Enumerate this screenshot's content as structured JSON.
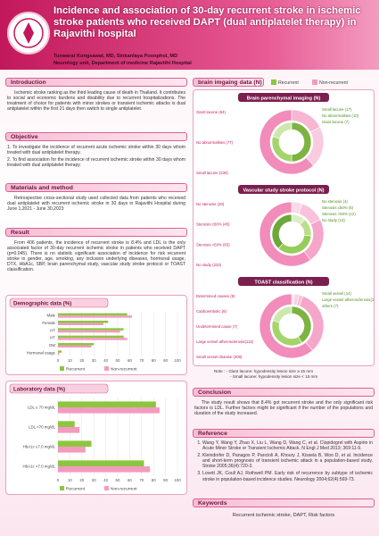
{
  "header": {
    "title": "Incidence and association of 30-day recurrent stroke in ischemic stroke patients who received DAPT (dual antiplatelet therapy) in Rajavithi hospital",
    "authors": "Tunwarat Kongsawat, MD, Sinkanlaya Poonphol, MD",
    "affiliation": "Neurology unit, Department of medicine Rajavithi Hospital"
  },
  "introduction": {
    "heading": "Introduction",
    "text": "Ischemic stroke ranking as the third leading cause of death in Thailand. It contributes to social and economic burdens and disability due to recurrent hospitalizations. The treatment of choice for patients with minor strokes or transient ischemic attacks is dual antiplatelet within the first 21 days then switch to single antiplatelet."
  },
  "objective": {
    "heading": "Objective",
    "items": [
      "1. To investigate the incidence of recurrent acute ischemic stroke within 30 days whom treated with dual antiplatelet therapy.",
      "2. To find association for the incidence of recurrent ischemic stroke within 30 days whom treated with dual antiplatelet therapy."
    ]
  },
  "methods": {
    "heading": "Materials and method",
    "text": "Retrospective cross-sectional study used collected data from patients who received dual antiplatelet with recurrent ischemic stroke in 30 days in Rajavithi Hospital during June 1,2021 - June 30,2023"
  },
  "result": {
    "heading": "Result",
    "text": "From 406 patients, the incidence of recurrent stroke is 8.4% and LDL is the only associated factor of 30-day recurrent ischemic stroke in patients who received DAPT (p=0.045). There is no statistic significant association of incidence for risk recurrent stroke in gender, age, smoking, any inclusion underlying diseases, hormonal usage, DTX, HbA1c, SBP, brain parenchymal study, vascular study stroke protocol or TOAST classification."
  },
  "demographic_chart": {
    "type": "bar",
    "orientation": "horizontal",
    "title": "Demographic data (%)",
    "categories": [
      "Male",
      "Female",
      "HT",
      "HT",
      "DM",
      "Hormonal usage"
    ],
    "series": [
      {
        "name": "Recurrent",
        "color": "#8cc63f",
        "values": [
          58,
          42,
          55,
          55,
          30,
          3
        ]
      },
      {
        "name": "Non-recurrent",
        "color": "#f49ac1",
        "values": [
          62,
          38,
          52,
          58,
          28,
          1
        ]
      }
    ],
    "xlim": [
      0,
      100
    ],
    "xticks": [
      0,
      10,
      20,
      30,
      40,
      50,
      60,
      70,
      80,
      90,
      100
    ],
    "grid": true,
    "legend": "bottom"
  },
  "laboratory_chart": {
    "type": "bar",
    "orientation": "horizontal",
    "title": "Laboratory data (%)",
    "categories": [
      "LDL ≥ 70 mg/dL",
      "LDL <70 mg/dL",
      "HbA1c ≥7.0 mg/dL",
      "HbA1c <7.0 mg/dL"
    ],
    "series": [
      {
        "name": "Recurrent",
        "color": "#8cc63f",
        "values": [
          82,
          14,
          28,
          72
        ]
      },
      {
        "name": "Non-recurrent",
        "color": "#f49ac1",
        "values": [
          85,
          18,
          23,
          77
        ]
      }
    ],
    "xlim": [
      0,
      100
    ],
    "xticks": [
      0,
      10,
      20,
      30,
      40,
      50,
      60,
      70,
      80,
      90,
      100
    ],
    "grid": true,
    "legend": "bottom"
  },
  "imaging": {
    "title": "brain imgaing data (N)",
    "legend": [
      {
        "name": "Recurrent",
        "color": "#8cc63f"
      },
      {
        "name": "Non-recurrent",
        "color": "#f49ac1"
      }
    ],
    "panels": [
      {
        "type": "donut",
        "title": "Brain parenchymal imaging (N)",
        "recurrent": {
          "colors": [
            "#7cb342",
            "#a5d46a",
            "#cde8ab"
          ],
          "segments": [
            {
              "label": "Small lacune (17)",
              "value": 17
            },
            {
              "label": "No abnormalities (10)",
              "value": 10
            },
            {
              "label": "Giant lacune (7)",
              "value": 7
            }
          ]
        },
        "non_recurrent": {
          "colors": [
            "#f7b6d2",
            "#f9cbe0",
            "#f28cba"
          ],
          "segments": [
            {
              "label": "Giant lacune (64)",
              "value": 64
            },
            {
              "label": "No abnormalities (77)",
              "value": 77
            },
            {
              "label": "Small lacune (230)",
              "value": 230
            }
          ]
        }
      },
      {
        "type": "donut",
        "title": "Vascular study stroke protocol (N)",
        "recurrent": {
          "colors": [
            "#dcefc4",
            "#b9df8c",
            "#96cc5a",
            "#6fa83a"
          ],
          "segments": [
            {
              "label": "No stenosis (4)",
              "value": 4
            },
            {
              "label": "Stenosis ≤50% (5)",
              "value": 5
            },
            {
              "label": "Stenosis >50% (12)",
              "value": 12
            },
            {
              "label": "No study (13)",
              "value": 13
            }
          ]
        },
        "non_recurrent": {
          "colors": [
            "#fbd9e8",
            "#f9c2da",
            "#f5a6c9",
            "#f28cba"
          ],
          "segments": [
            {
              "label": "No stenosis (20)",
              "value": 20
            },
            {
              "label": "Stenosis ≤50% (45)",
              "value": 45
            },
            {
              "label": "Stenosis >50% (83)",
              "value": 83
            },
            {
              "label": "No study (222)",
              "value": 222
            }
          ]
        }
      },
      {
        "type": "donut",
        "title": "TOAST classification (N)",
        "recurrent": {
          "colors": [
            "#7cb342",
            "#a5d46a",
            "#cde8ab"
          ],
          "segments": [
            {
              "label": "Small vessel (14)",
              "value": 14
            },
            {
              "label": "Large vessel atherosclerosis(13)",
              "value": 13
            },
            {
              "label": "others (7)",
              "value": 7
            }
          ]
        },
        "non_recurrent": {
          "colors": [
            "#fde3ee",
            "#fbd0e3",
            "#f9bfd8",
            "#f5a6c9",
            "#f28cba"
          ],
          "segments": [
            {
              "label": "Determined causes (5)",
              "value": 5
            },
            {
              "label": "Cardioembolic (8)",
              "value": 8
            },
            {
              "label": "Undetermined cause (7)",
              "value": 7
            },
            {
              "label": "Large vessel atherosclerosis(112)",
              "value": 112
            },
            {
              "label": "Small vessel disease (209)",
              "value": 209
            }
          ]
        }
      }
    ],
    "notes": [
      "Note : - Giant lacune: hypodensity lesion size ≥ 15 mm",
      "- Small lacune: hypodensity lesion size < 15 mm"
    ]
  },
  "conclusion": {
    "heading": "Conclusion",
    "text": "The study result shows that 8.4% got recurrent stroke and the only significant risk factors is LDL. Further factors might be significant if the number of the populations and duration of the study increased."
  },
  "references": {
    "heading": "Reference",
    "items": [
      "Wang Y, Wang Y, Zhao X, Liu L, Wang D, Wang C, et al. Clopidogrel with Aspirin in Acute Minor Stroke or Transient Ischemic Attack. N Engl J Med 2013; 369:11-9.",
      "Kleindorfer D, Panagos P, Pancioli A, Khoury J, Kissela B, Woo D, et al. Incidence and short-term prognosis of transient ischemic attack in a population-based study. Stroke 2005;36(4):720-3.",
      "Lovett JK, Coull AJ, Rothwell PM. Early risk of recurrence by subtype of ischemic stroke in population-based incidence studies. Neurology 2004;62(4):569-73."
    ]
  },
  "keywords": {
    "heading": "Keywords",
    "text": "Recurrent ischemic stroke, DAPT, Risk factors"
  }
}
